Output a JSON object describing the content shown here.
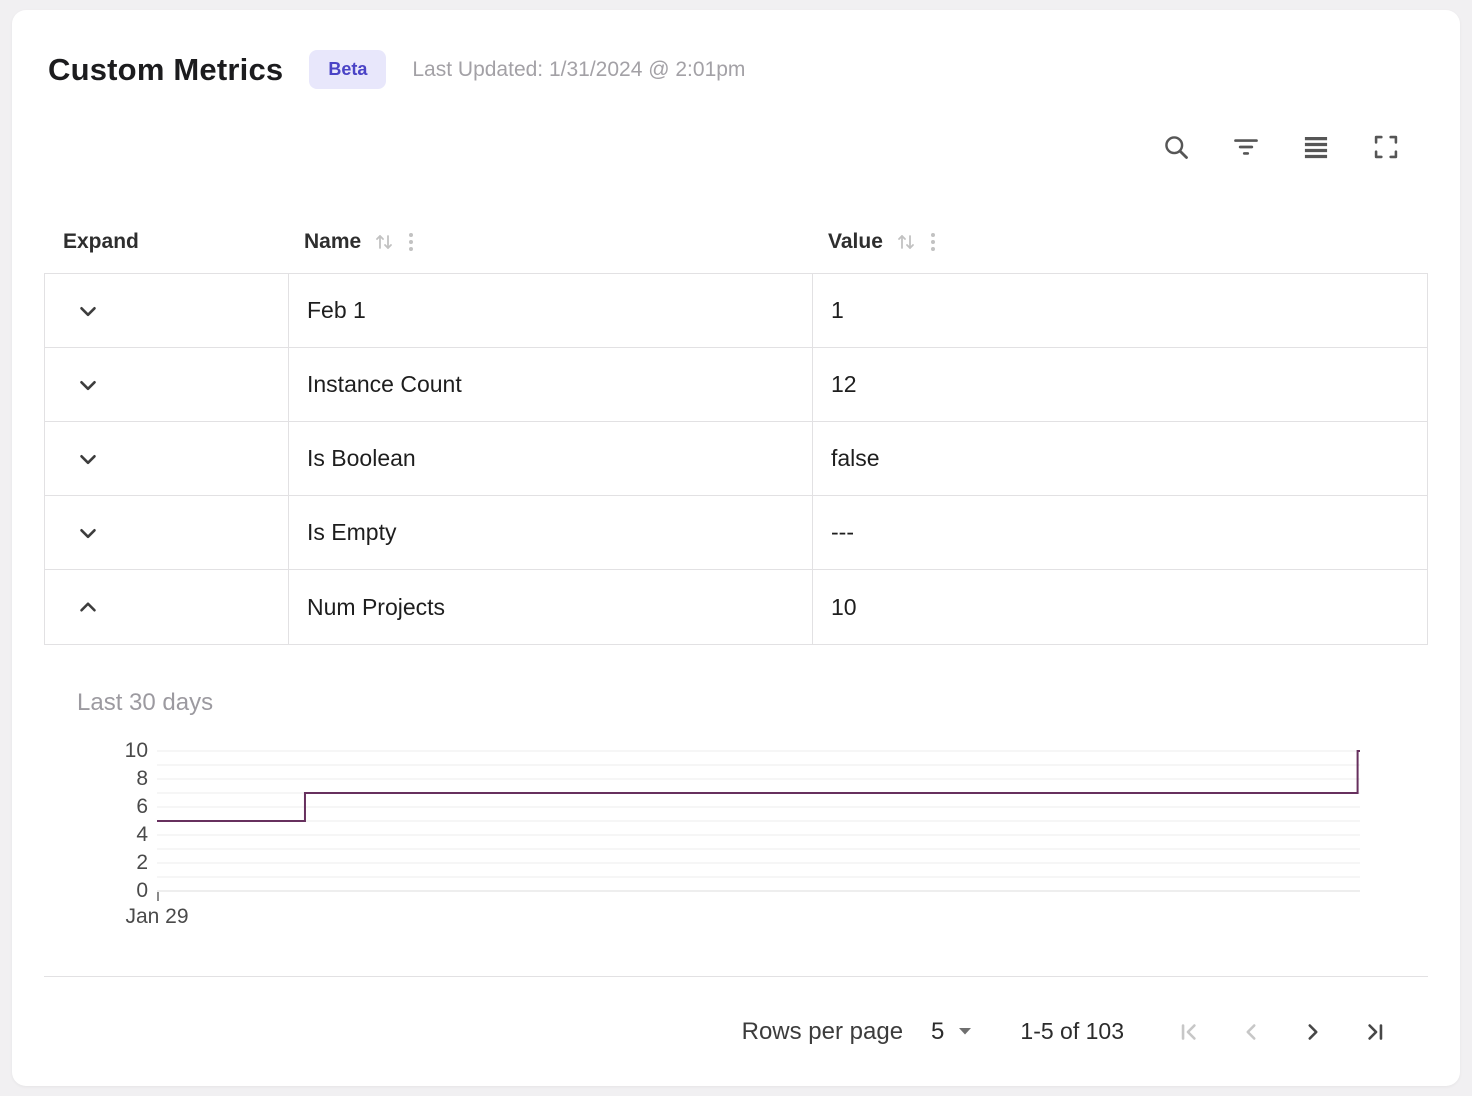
{
  "page": {
    "title": "Custom Metrics",
    "badge": "Beta",
    "last_updated": "Last Updated: 1/31/2024 @ 2:01pm"
  },
  "toolbar": {
    "icons": [
      "search",
      "filter",
      "density",
      "fullscreen"
    ]
  },
  "table": {
    "headers": {
      "expand": "Expand",
      "name": "Name",
      "value": "Value"
    },
    "rows": [
      {
        "name": "Feb 1",
        "value": "1",
        "expanded": false
      },
      {
        "name": "Instance Count",
        "value": "12",
        "expanded": false
      },
      {
        "name": "Is Boolean",
        "value": "false",
        "expanded": false
      },
      {
        "name": "Is Empty",
        "value": "---",
        "expanded": false
      },
      {
        "name": "Num Projects",
        "value": "10",
        "expanded": true
      }
    ]
  },
  "expanded_panel": {
    "row_name": "Num Projects",
    "label": "Last 30 days",
    "chart_data": {
      "type": "line",
      "title": "Last 30 days",
      "series_name": "Num Projects",
      "ylim": [
        0,
        10
      ],
      "yticks": [
        0,
        2,
        4,
        6,
        8,
        10
      ],
      "x_first_tick": "Jan 29",
      "grid": true,
      "line_color": "#67305e",
      "points": [
        {
          "x": 0,
          "y": 5
        },
        {
          "x": 0.123,
          "y": 5
        },
        {
          "x": 0.123,
          "y": 7
        },
        {
          "x": 0.998,
          "y": 7
        },
        {
          "x": 0.998,
          "y": 10
        },
        {
          "x": 1,
          "y": 10
        }
      ]
    }
  },
  "footer": {
    "rows_per_page_label": "Rows per page",
    "rows_per_page_value": "5",
    "range": "1-5 of 103",
    "pagination": {
      "first_enabled": false,
      "prev_enabled": false,
      "next_enabled": true,
      "last_enabled": true
    }
  },
  "colors": {
    "badge_bg": "#e8e7fb",
    "badge_text": "#4a43c6",
    "chart_line": "#67305e",
    "table_border": "#e2e1e3",
    "muted_text": "#a3a1a6"
  }
}
